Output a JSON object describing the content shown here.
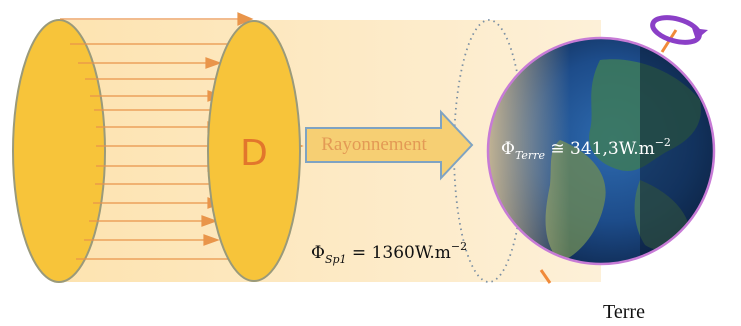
{
  "labels": {
    "disc": "D",
    "arrow": "Rayonnement",
    "earth_name": "Terre"
  },
  "flux_sun": {
    "symbol": "Φ",
    "sub": "Sp1",
    "expr": " = 1360W.m",
    "exp": "−2"
  },
  "flux_earth": {
    "symbol": "Φ",
    "sub": "Terre",
    "expr": " ≅ 341,3W.m",
    "exp": "−2"
  },
  "colors": {
    "disc_fill": "#f7c43a",
    "disc_stroke": "#9a9a7a",
    "beam": "#fde9c2",
    "ray": "#e9954a",
    "arrow_fill": "#f6cf73",
    "arrow_stroke": "#7fa3c2",
    "arrow_text": "#e39a55",
    "disc_text": "#e2762c",
    "ocean": "#1f4f8c",
    "ring": "#c77bd6"
  }
}
